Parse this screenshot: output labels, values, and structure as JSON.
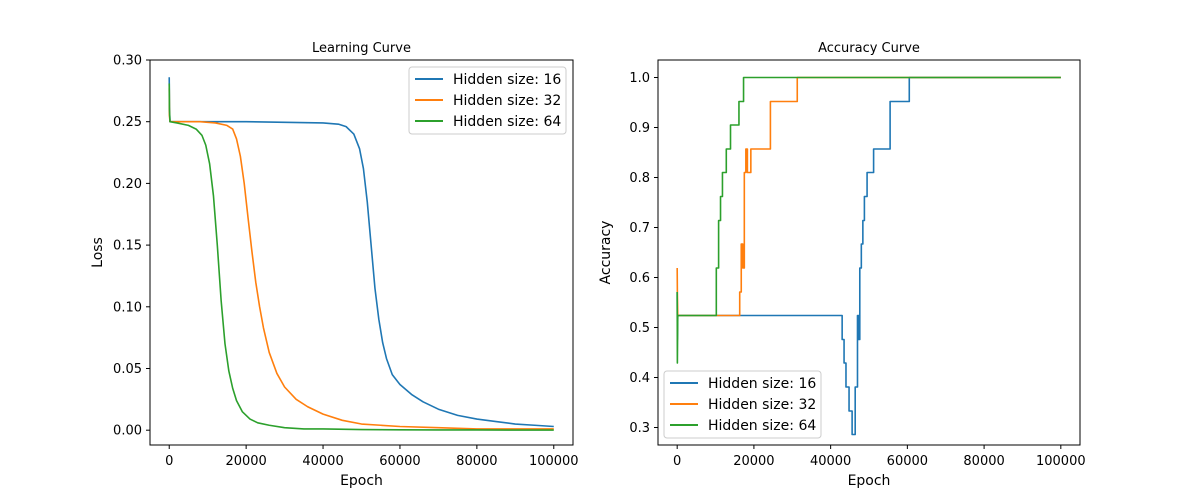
{
  "colors": {
    "s16": "#1f77b4",
    "s32": "#ff7f0e",
    "s64": "#2ca02c",
    "axis": "#000000",
    "legend_border": "#cccccc"
  },
  "chart_data": [
    {
      "type": "line",
      "title": "Learning Curve",
      "xlabel": "Epoch",
      "ylabel": "Loss",
      "xlim": [
        -5000,
        105000
      ],
      "ylim": [
        -0.012,
        0.3
      ],
      "xticks": [
        0,
        20000,
        40000,
        60000,
        80000,
        100000
      ],
      "xtick_labels": [
        "0",
        "20000",
        "40000",
        "60000",
        "80000",
        "100000"
      ],
      "yticks": [
        0.0,
        0.05,
        0.1,
        0.15,
        0.2,
        0.25,
        0.3
      ],
      "ytick_labels": [
        "0.00",
        "0.05",
        "0.10",
        "0.15",
        "0.20",
        "0.25",
        "0.30"
      ],
      "grid": false,
      "legend": "top-right",
      "series": [
        {
          "name": "Hidden size: 16",
          "color": "#1f77b4",
          "x": [
            0,
            50,
            200,
            2000,
            20000,
            40000,
            44000,
            46000,
            48000,
            49500,
            50500,
            51500,
            52500,
            53500,
            54500,
            55500,
            56500,
            58000,
            60000,
            63000,
            66000,
            70000,
            75000,
            80000,
            85000,
            90000,
            95000,
            100000
          ],
          "y": [
            0.286,
            0.262,
            0.25,
            0.25,
            0.25,
            0.249,
            0.248,
            0.246,
            0.24,
            0.228,
            0.212,
            0.185,
            0.15,
            0.115,
            0.09,
            0.071,
            0.058,
            0.045,
            0.037,
            0.029,
            0.023,
            0.017,
            0.012,
            0.009,
            0.007,
            0.005,
            0.004,
            0.003
          ]
        },
        {
          "name": "Hidden size: 32",
          "color": "#ff7f0e",
          "x": [
            0,
            50,
            200,
            2000,
            8000,
            12000,
            15000,
            16500,
            17500,
            18500,
            19500,
            20500,
            21500,
            22500,
            23500,
            24500,
            26000,
            28000,
            30000,
            33000,
            36000,
            40000,
            45000,
            50000,
            55000,
            60000,
            70000,
            80000,
            90000,
            100000
          ],
          "y": [
            0.277,
            0.255,
            0.25,
            0.25,
            0.25,
            0.249,
            0.247,
            0.244,
            0.236,
            0.222,
            0.2,
            0.172,
            0.145,
            0.12,
            0.1,
            0.083,
            0.063,
            0.046,
            0.035,
            0.025,
            0.019,
            0.013,
            0.008,
            0.005,
            0.004,
            0.003,
            0.002,
            0.001,
            0.001,
            0.001
          ]
        },
        {
          "name": "Hidden size: 64",
          "color": "#2ca02c",
          "x": [
            0,
            50,
            200,
            2000,
            5000,
            7000,
            8500,
            9500,
            10500,
            11500,
            12500,
            13500,
            14500,
            15500,
            16500,
            17500,
            19000,
            21000,
            23000,
            26000,
            30000,
            35000,
            40000,
            50000,
            60000,
            70000,
            80000,
            90000,
            100000
          ],
          "y": [
            0.281,
            0.26,
            0.25,
            0.249,
            0.247,
            0.244,
            0.239,
            0.231,
            0.216,
            0.19,
            0.15,
            0.105,
            0.07,
            0.048,
            0.034,
            0.024,
            0.015,
            0.009,
            0.006,
            0.004,
            0.002,
            0.001,
            0.001,
            0.0005,
            0.0003,
            0.0002,
            0.0002,
            0.0001,
            0.0001
          ]
        }
      ]
    },
    {
      "type": "line",
      "title": "Accuracy Curve",
      "xlabel": "Epoch",
      "ylabel": "Accuracy",
      "xlim": [
        -5000,
        105000
      ],
      "ylim": [
        0.265,
        1.035
      ],
      "xticks": [
        0,
        20000,
        40000,
        60000,
        80000,
        100000
      ],
      "xtick_labels": [
        "0",
        "20000",
        "40000",
        "60000",
        "80000",
        "100000"
      ],
      "yticks": [
        0.3,
        0.4,
        0.5,
        0.6,
        0.7,
        0.8,
        0.9,
        1.0
      ],
      "ytick_labels": [
        "0.3",
        "0.4",
        "0.5",
        "0.6",
        "0.7",
        "0.8",
        "0.9",
        "1.0"
      ],
      "grid": false,
      "legend": "bottom-left",
      "series": [
        {
          "name": "Hidden size: 16",
          "color": "#1f77b4",
          "x": [
            0,
            50,
            150,
            300,
            43000,
            43000,
            43500,
            43500,
            44000,
            44000,
            44800,
            44800,
            45600,
            45600,
            46400,
            46400,
            47000,
            47000,
            47300,
            47300,
            47600,
            47600,
            48000,
            48000,
            48400,
            48400,
            48800,
            48800,
            49500,
            49500,
            50300,
            50300,
            51200,
            51200,
            52500,
            52500,
            55500,
            55500,
            60500,
            60500,
            100000
          ],
          "y": [
            0.571,
            0.476,
            0.524,
            0.524,
            0.524,
            0.476,
            0.476,
            0.429,
            0.429,
            0.381,
            0.381,
            0.333,
            0.333,
            0.286,
            0.286,
            0.381,
            0.381,
            0.524,
            0.524,
            0.476,
            0.476,
            0.619,
            0.619,
            0.667,
            0.667,
            0.714,
            0.714,
            0.762,
            0.762,
            0.81,
            0.81,
            0.81,
            0.81,
            0.857,
            0.857,
            0.857,
            0.857,
            0.952,
            0.952,
            1.0,
            1.0
          ]
        },
        {
          "name": "Hidden size: 32",
          "color": "#ff7f0e",
          "x": [
            0,
            50,
            150,
            300,
            16300,
            16300,
            16700,
            16700,
            17100,
            17100,
            17500,
            17500,
            17900,
            17900,
            18300,
            18300,
            19200,
            19200,
            20200,
            20200,
            24300,
            24300,
            31300,
            31300,
            100000
          ],
          "y": [
            0.619,
            0.571,
            0.524,
            0.524,
            0.524,
            0.571,
            0.571,
            0.667,
            0.667,
            0.619,
            0.619,
            0.81,
            0.81,
            0.857,
            0.857,
            0.81,
            0.81,
            0.857,
            0.857,
            0.857,
            0.857,
            0.952,
            0.952,
            1.0,
            1.0
          ]
        },
        {
          "name": "Hidden size: 64",
          "color": "#2ca02c",
          "x": [
            0,
            50,
            150,
            300,
            10200,
            10200,
            10800,
            10800,
            11300,
            11300,
            11800,
            11800,
            12300,
            12300,
            12800,
            12800,
            13300,
            13300,
            13900,
            13900,
            16100,
            16100,
            17300,
            17300,
            100000
          ],
          "y": [
            0.571,
            0.429,
            0.524,
            0.524,
            0.524,
            0.619,
            0.619,
            0.714,
            0.714,
            0.762,
            0.762,
            0.81,
            0.81,
            0.81,
            0.81,
            0.857,
            0.857,
            0.857,
            0.857,
            0.905,
            0.905,
            0.952,
            0.952,
            1.0,
            1.0
          ]
        }
      ]
    }
  ]
}
